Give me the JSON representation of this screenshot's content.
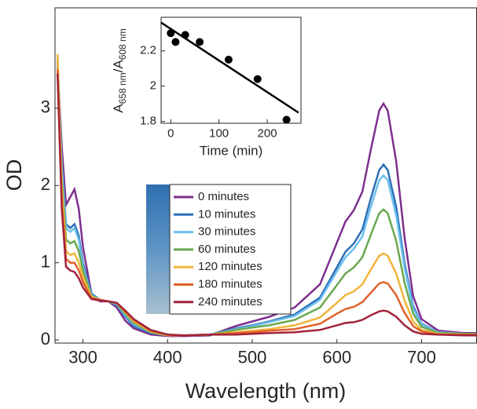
{
  "chart_data": [
    {
      "type": "line",
      "xlabel": "Wavelength (nm)",
      "ylabel": "OD",
      "xlim": [
        267,
        765
      ],
      "ylim": [
        -0.04,
        4.3
      ],
      "xticks": [
        300,
        400,
        500,
        600,
        700
      ],
      "yticks": [
        0,
        1,
        2,
        3
      ],
      "x": [
        270,
        275,
        280,
        285,
        290,
        295,
        300,
        310,
        320,
        330,
        340,
        350,
        360,
        380,
        400,
        420,
        450,
        480,
        500,
        520,
        550,
        580,
        600,
        610,
        620,
        630,
        640,
        650,
        655,
        660,
        670,
        680,
        690,
        700,
        720,
        750,
        765
      ],
      "series": [
        {
          "name": "0 minutes",
          "color": "#7e2f8e",
          "values": [
            3.55,
            2.5,
            1.75,
            1.85,
            1.95,
            1.7,
            1.2,
            0.6,
            0.5,
            0.5,
            0.42,
            0.25,
            0.15,
            0.07,
            0.05,
            0.05,
            0.06,
            0.18,
            0.24,
            0.3,
            0.42,
            0.72,
            1.26,
            1.53,
            1.68,
            1.92,
            2.46,
            2.97,
            3.06,
            2.97,
            2.31,
            1.32,
            0.57,
            0.27,
            0.12,
            0.09,
            0.09
          ]
        },
        {
          "name": "10 minutes",
          "color": "#2e6fb7",
          "values": [
            3.6,
            2.3,
            1.5,
            1.45,
            1.5,
            1.35,
            1.0,
            0.6,
            0.52,
            0.5,
            0.45,
            0.3,
            0.18,
            0.09,
            0.06,
            0.06,
            0.07,
            0.15,
            0.19,
            0.24,
            0.33,
            0.55,
            0.94,
            1.14,
            1.25,
            1.43,
            1.83,
            2.2,
            2.27,
            2.2,
            1.72,
            0.99,
            0.44,
            0.21,
            0.1,
            0.08,
            0.08
          ]
        },
        {
          "name": "30 minutes",
          "color": "#6cc0ec",
          "values": [
            3.65,
            2.25,
            1.45,
            1.4,
            1.45,
            1.3,
            0.95,
            0.58,
            0.52,
            0.5,
            0.46,
            0.32,
            0.2,
            0.1,
            0.06,
            0.06,
            0.07,
            0.14,
            0.18,
            0.23,
            0.31,
            0.52,
            0.89,
            1.07,
            1.18,
            1.34,
            1.72,
            2.07,
            2.13,
            2.07,
            1.61,
            0.93,
            0.41,
            0.2,
            0.1,
            0.08,
            0.08
          ]
        },
        {
          "name": "60 minutes",
          "color": "#6aa84f",
          "values": [
            3.65,
            2.1,
            1.3,
            1.25,
            1.28,
            1.15,
            0.9,
            0.57,
            0.52,
            0.5,
            0.47,
            0.34,
            0.22,
            0.1,
            0.06,
            0.06,
            0.07,
            0.13,
            0.16,
            0.19,
            0.26,
            0.42,
            0.71,
            0.86,
            0.94,
            1.07,
            1.36,
            1.64,
            1.69,
            1.64,
            1.28,
            0.74,
            0.34,
            0.17,
            0.09,
            0.08,
            0.08
          ]
        },
        {
          "name": "120 minutes",
          "color": "#f0b53c",
          "values": [
            3.7,
            2.0,
            1.15,
            1.1,
            1.12,
            1.0,
            0.82,
            0.56,
            0.52,
            0.5,
            0.48,
            0.36,
            0.24,
            0.11,
            0.06,
            0.06,
            0.07,
            0.1,
            0.12,
            0.14,
            0.19,
            0.29,
            0.48,
            0.58,
            0.63,
            0.72,
            0.91,
            1.09,
            1.12,
            1.09,
            0.86,
            0.51,
            0.24,
            0.13,
            0.08,
            0.07,
            0.07
          ]
        },
        {
          "name": "180 minutes",
          "color": "#e0622a",
          "values": [
            3.5,
            1.8,
            1.05,
            1.0,
            1.0,
            0.9,
            0.75,
            0.54,
            0.52,
            0.5,
            0.48,
            0.37,
            0.26,
            0.12,
            0.07,
            0.06,
            0.07,
            0.09,
            0.1,
            0.12,
            0.14,
            0.21,
            0.34,
            0.4,
            0.43,
            0.49,
            0.61,
            0.73,
            0.75,
            0.73,
            0.58,
            0.35,
            0.18,
            0.11,
            0.07,
            0.07,
            0.07
          ]
        },
        {
          "name": "240 minutes",
          "color": "#a2233a",
          "values": [
            3.45,
            1.7,
            0.95,
            0.9,
            0.88,
            0.8,
            0.68,
            0.53,
            0.51,
            0.5,
            0.48,
            0.38,
            0.27,
            0.13,
            0.07,
            0.06,
            0.07,
            0.07,
            0.08,
            0.09,
            0.1,
            0.13,
            0.19,
            0.22,
            0.23,
            0.26,
            0.32,
            0.37,
            0.38,
            0.37,
            0.3,
            0.19,
            0.11,
            0.08,
            0.07,
            0.06,
            0.06
          ]
        }
      ]
    },
    {
      "type": "scatter",
      "xlabel": "Time (min)",
      "ylabel": [
        "A",
        "658 nm",
        "/A",
        "608 nm"
      ],
      "xlim": [
        -20,
        270
      ],
      "ylim": [
        1.79,
        2.39
      ],
      "xticks": [
        0,
        100,
        200
      ],
      "yticks": [
        1.8,
        2,
        2.2
      ],
      "x": [
        0,
        10,
        30,
        60,
        120,
        180,
        240
      ],
      "values": [
        2.3,
        2.25,
        2.29,
        2.25,
        2.15,
        2.04,
        1.81
      ],
      "color": "#000000",
      "fit": {
        "x": [
          -20,
          265
        ],
        "values": [
          2.36,
          1.85
        ]
      }
    }
  ]
}
